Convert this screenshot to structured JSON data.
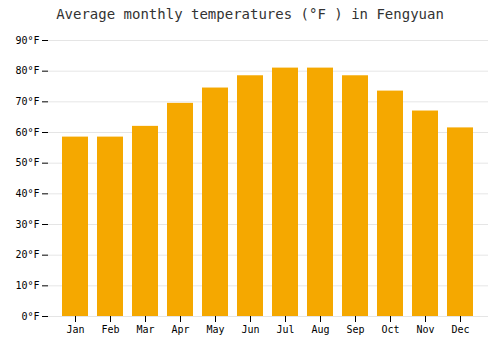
{
  "chart_data": {
    "type": "bar",
    "title": "Average monthly temperatures (°F ) in Fengyuan",
    "categories": [
      "Jan",
      "Feb",
      "Mar",
      "Apr",
      "May",
      "Jun",
      "Jul",
      "Aug",
      "Sep",
      "Oct",
      "Nov",
      "Dec"
    ],
    "values": [
      58.5,
      58.5,
      62.0,
      69.5,
      74.5,
      78.5,
      81.0,
      81.0,
      78.5,
      73.5,
      67.0,
      61.5
    ],
    "color": "#F5A800",
    "ylim": [
      0,
      90
    ],
    "yticks": [
      {
        "value": 0,
        "label": "0°F"
      },
      {
        "value": 10,
        "label": "10°F"
      },
      {
        "value": 20,
        "label": "20°F"
      },
      {
        "value": 30,
        "label": "30°F"
      },
      {
        "value": 40,
        "label": "40°F"
      },
      {
        "value": 50,
        "label": "50°F"
      },
      {
        "value": 60,
        "label": "60°F"
      },
      {
        "value": 70,
        "label": "70°F"
      },
      {
        "value": 80,
        "label": "80°F"
      },
      {
        "value": 90,
        "label": "90°F"
      }
    ],
    "grid": true
  }
}
